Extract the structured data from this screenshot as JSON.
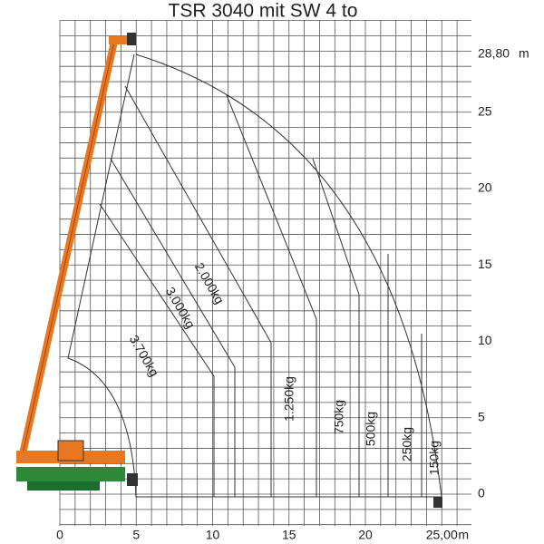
{
  "title": "TSR 3040 mit SW 4 to",
  "x_axis": {
    "unit": "m",
    "ticks": [
      0,
      5,
      10,
      15,
      20,
      {
        "value": 25,
        "label": "25,00"
      }
    ]
  },
  "y_axis": {
    "unit": "m",
    "ticks": [
      0,
      5,
      10,
      15,
      20,
      25,
      {
        "value": 28.8,
        "label": "28,80"
      }
    ]
  },
  "zones": [
    "3.700kg",
    "3.000kg",
    "2.000kg",
    "1.250kg",
    "750kg",
    "500kg",
    "250kg",
    "150kg"
  ]
}
